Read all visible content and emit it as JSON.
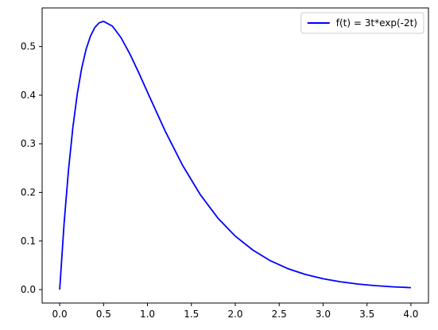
{
  "chart_data": {
    "type": "line",
    "title": "",
    "xlabel": "",
    "ylabel": "",
    "xlim": [
      -0.2,
      4.2
    ],
    "ylim": [
      -0.0276,
      0.5794
    ],
    "grid": false,
    "legend_position": "top-right",
    "x_ticks": [
      0.0,
      0.5,
      1.0,
      1.5,
      2.0,
      2.5,
      3.0,
      3.5,
      4.0
    ],
    "x_tick_labels": [
      "0.0",
      "0.5",
      "1.0",
      "1.5",
      "2.0",
      "2.5",
      "3.0",
      "3.5",
      "4.0"
    ],
    "y_ticks": [
      0.0,
      0.1,
      0.2,
      0.3,
      0.4,
      0.5
    ],
    "y_tick_labels": [
      "0.0",
      "0.1",
      "0.2",
      "0.3",
      "0.4",
      "0.5"
    ],
    "series": [
      {
        "name": "f(t) = 3t*exp(-2t)",
        "color": "#0000ff",
        "x": [
          0.0,
          0.05,
          0.1,
          0.15,
          0.2,
          0.25,
          0.3,
          0.35,
          0.4,
          0.45,
          0.5,
          0.6,
          0.7,
          0.8,
          0.9,
          1.0,
          1.2,
          1.4,
          1.6,
          1.8,
          2.0,
          2.2,
          2.4,
          2.6,
          2.8,
          3.0,
          3.2,
          3.4,
          3.6,
          3.8,
          4.0
        ],
        "y": [
          0.0,
          0.1357,
          0.2456,
          0.3334,
          0.4022,
          0.4549,
          0.4939,
          0.5214,
          0.5392,
          0.5489,
          0.5518,
          0.5421,
          0.5178,
          0.4845,
          0.4463,
          0.406,
          0.3266,
          0.2555,
          0.1957,
          0.1475,
          0.1099,
          0.0813,
          0.0593,
          0.043,
          0.0311,
          0.0223,
          0.016,
          0.0114,
          0.0081,
          0.0057,
          0.004
        ]
      }
    ]
  }
}
